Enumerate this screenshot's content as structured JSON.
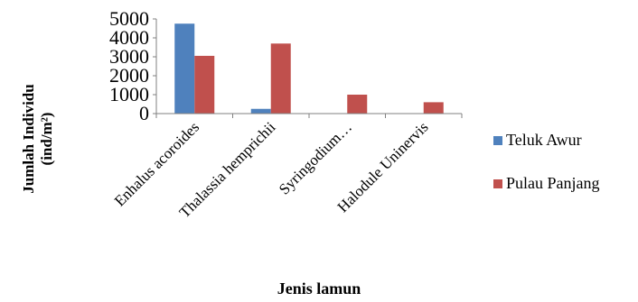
{
  "chart_data": {
    "type": "bar",
    "categories": [
      "Enhalus acoroides",
      "Thalassia hemprichii",
      "Syringodium…",
      "Halodule Uninervis"
    ],
    "series": [
      {
        "name": "Teluk Awur",
        "values": [
          4750,
          250,
          0,
          0
        ],
        "color": "#4f81bd"
      },
      {
        "name": "Pulau Panjang",
        "values": [
          3050,
          3700,
          1000,
          600
        ],
        "color": "#c0504d"
      }
    ],
    "yticks": [
      0,
      1000,
      2000,
      3000,
      4000,
      5000
    ],
    "ylim": [
      0,
      5000
    ],
    "xlabel": "Jenis lamun",
    "ylabel_line1": "Jumlah Individu",
    "ylabel_line2": "(ind/m²)",
    "legend_position": "right",
    "grid": false
  }
}
